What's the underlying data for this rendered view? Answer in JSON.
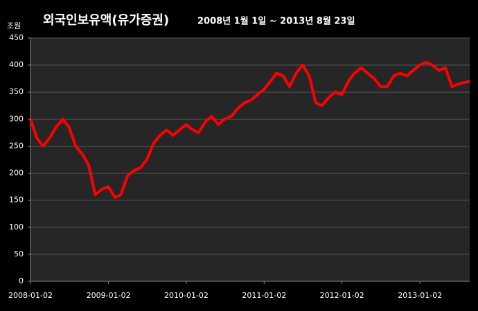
{
  "chart_data": {
    "type": "line",
    "title": "외국인보유액(유가증권)",
    "subtitle": "2008년 1월 1일 ~ 2013년 8월 23일",
    "y_label": "조원",
    "x": [
      "2008-01-02",
      "2008-02-01",
      "2008-03-01",
      "2008-04-01",
      "2008-05-01",
      "2008-06-01",
      "2008-07-01",
      "2008-08-01",
      "2008-09-01",
      "2008-10-01",
      "2008-11-01",
      "2008-12-01",
      "2009-01-01",
      "2009-02-01",
      "2009-03-01",
      "2009-04-01",
      "2009-05-01",
      "2009-06-01",
      "2009-07-01",
      "2009-08-01",
      "2009-09-01",
      "2009-10-01",
      "2009-11-01",
      "2009-12-01",
      "2010-01-01",
      "2010-02-01",
      "2010-03-01",
      "2010-04-01",
      "2010-05-01",
      "2010-06-01",
      "2010-07-01",
      "2010-08-01",
      "2010-09-01",
      "2010-10-01",
      "2010-11-01",
      "2010-12-01",
      "2011-01-01",
      "2011-02-01",
      "2011-03-01",
      "2011-04-01",
      "2011-05-01",
      "2011-06-01",
      "2011-07-01",
      "2011-08-01",
      "2011-09-01",
      "2011-10-01",
      "2011-11-01",
      "2011-12-01",
      "2012-01-01",
      "2012-02-01",
      "2012-03-01",
      "2012-04-01",
      "2012-05-01",
      "2012-06-01",
      "2012-07-01",
      "2012-08-01",
      "2012-09-01",
      "2012-10-01",
      "2012-11-01",
      "2012-12-01",
      "2013-01-01",
      "2013-02-01",
      "2013-03-01",
      "2013-04-01",
      "2013-05-01",
      "2013-06-01",
      "2013-07-01",
      "2013-08-23"
    ],
    "series": [
      {
        "name": "외국인보유액",
        "color": "#ff0000",
        "values": [
          300,
          265,
          250,
          265,
          285,
          300,
          285,
          250,
          235,
          215,
          160,
          170,
          175,
          155,
          160,
          195,
          205,
          210,
          225,
          255,
          270,
          280,
          270,
          280,
          290,
          280,
          275,
          295,
          305,
          290,
          300,
          305,
          320,
          330,
          335,
          345,
          355,
          370,
          385,
          380,
          360,
          385,
          400,
          380,
          330,
          325,
          340,
          350,
          345,
          370,
          385,
          395,
          385,
          375,
          360,
          360,
          380,
          385,
          380,
          390,
          400,
          405,
          400,
          390,
          395,
          360,
          365,
          370
        ]
      }
    ],
    "xlim": [
      "2008-01-02",
      "2013-08-23"
    ],
    "xticks": [
      "2008-01-02",
      "2009-01-02",
      "2010-01-02",
      "2011-01-02",
      "2012-01-02",
      "2013-01-02"
    ],
    "ylim": [
      0,
      450
    ],
    "yticks": [
      0,
      50,
      100,
      150,
      200,
      250,
      300,
      350,
      400,
      450
    ],
    "grid": true,
    "background": "#262626"
  }
}
